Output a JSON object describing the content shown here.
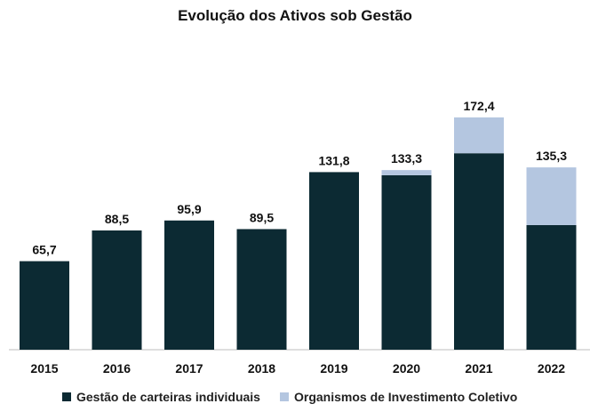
{
  "chart_data": {
    "type": "bar",
    "stacked": true,
    "title": "Evolução dos Ativos sob Gestão",
    "categories": [
      "2015",
      "2016",
      "2017",
      "2018",
      "2019",
      "2020",
      "2021",
      "2022"
    ],
    "totals": [
      "65,7",
      "88,5",
      "95,9",
      "89,5",
      "131,8",
      "133,3",
      "172,4",
      "135,3"
    ],
    "series": [
      {
        "name": "Gestão de carteiras individuais",
        "color": "#0c2a33",
        "values": [
          65.7,
          88.5,
          95.9,
          89.5,
          131.8,
          129.5,
          145.8,
          92.5
        ]
      },
      {
        "name": "Organismos de Investimento Coletivo",
        "color": "#b4c6e0",
        "values": [
          0,
          0,
          0,
          0,
          0,
          3.8,
          26.6,
          42.8
        ]
      }
    ],
    "ylim": [
      0,
      175
    ],
    "grid": false,
    "legend_position": "bottom"
  }
}
